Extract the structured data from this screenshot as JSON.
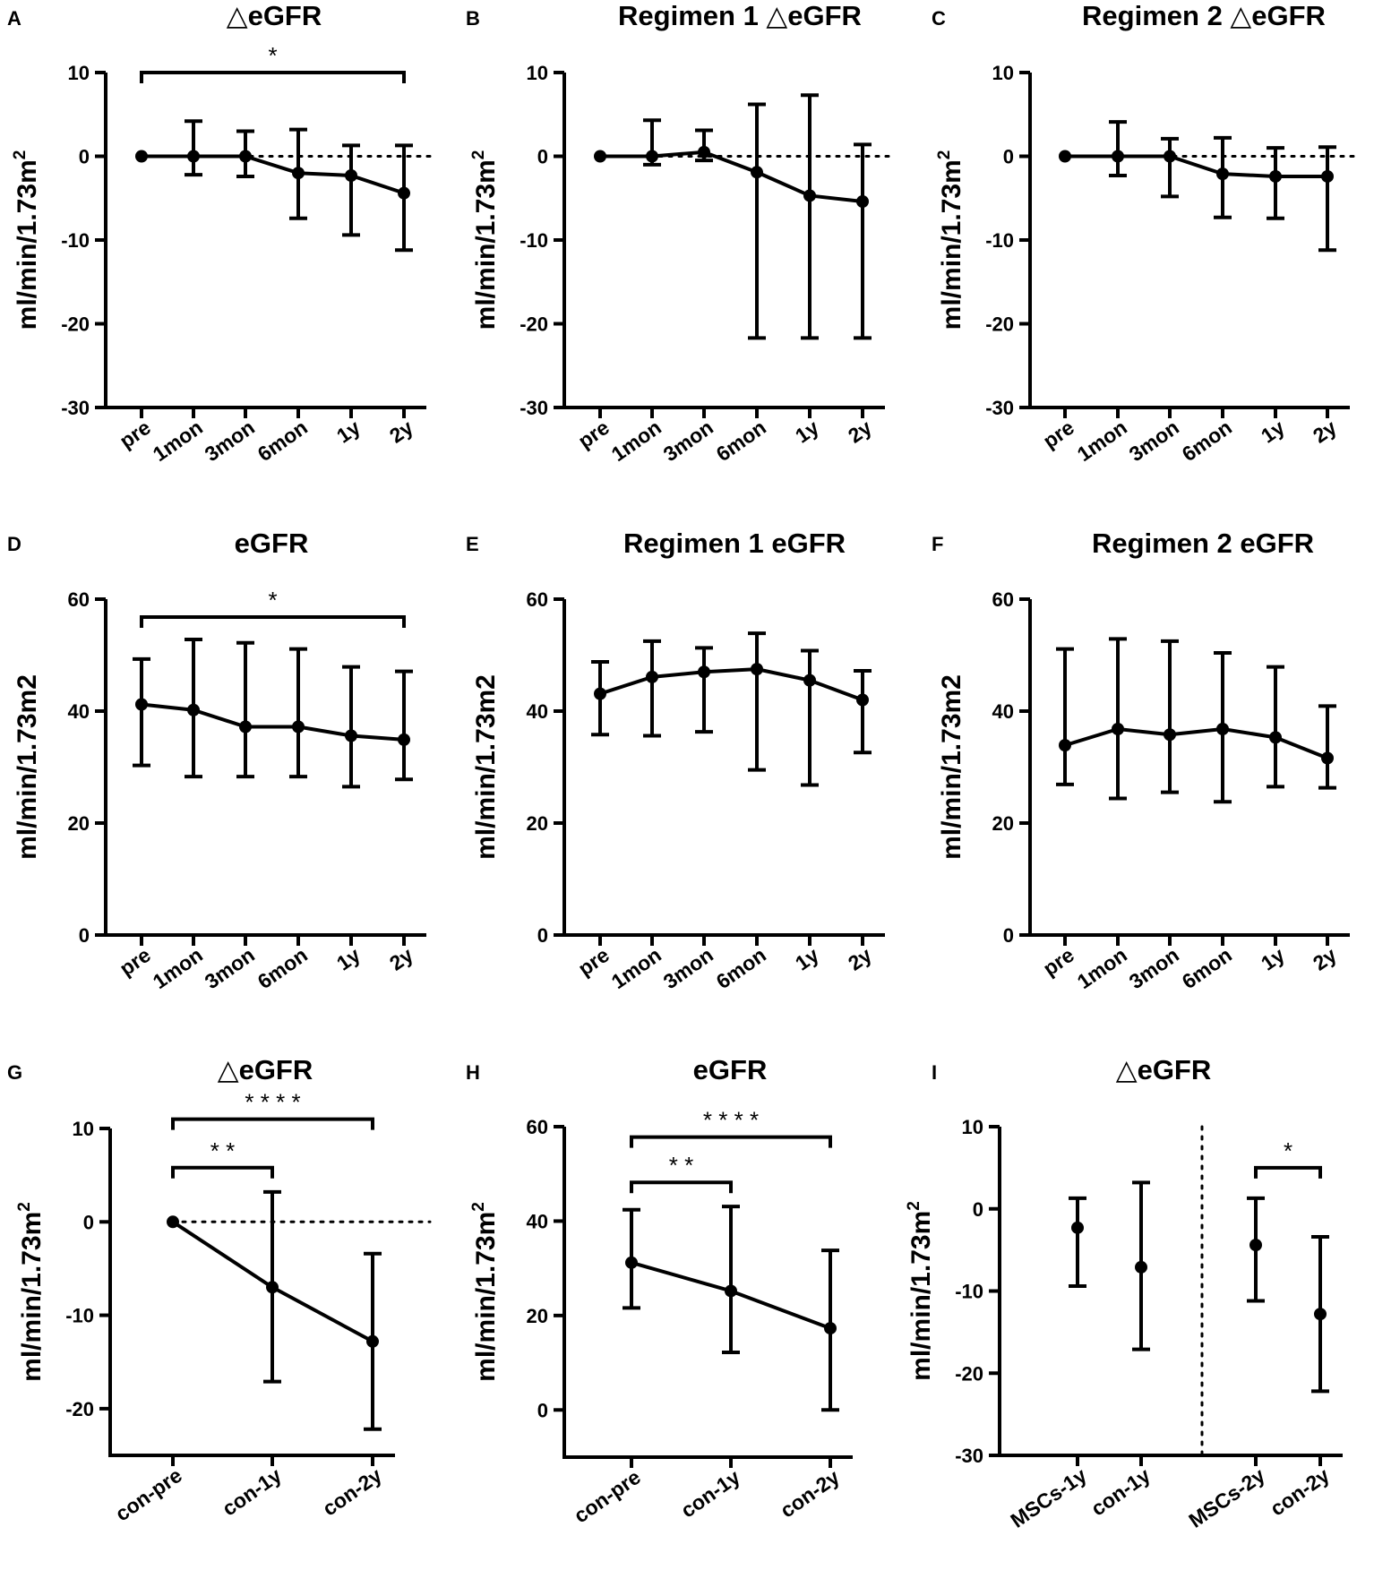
{
  "figure": {
    "background": "#ffffff",
    "ink": "#000000"
  },
  "chart_data": [
    {
      "id": "A",
      "panel_label": "A",
      "type": "line",
      "title": "△eGFR",
      "ylabel": "ml/min/1.73m",
      "ylabel_superscript": "2",
      "ylim": [
        -30,
        10
      ],
      "yticks": [
        10,
        0,
        -10,
        -20,
        -30
      ],
      "categories": [
        "pre",
        "1mon",
        "3mon",
        "6mon",
        "1y",
        "2y"
      ],
      "values": [
        0,
        0,
        0,
        -2,
        -2.3,
        -4.4
      ],
      "err_low": [
        0,
        -2.2,
        -2.4,
        -7.4,
        -9.4,
        -11.2
      ],
      "err_high": [
        0,
        4.2,
        3,
        3.2,
        1.3,
        1.3
      ],
      "zero_line": true,
      "comparisons": [
        {
          "from": 0,
          "to": 5,
          "at": 10,
          "label": "*"
        }
      ]
    },
    {
      "id": "B",
      "panel_label": "B",
      "type": "line",
      "title": "Regimen 1 △eGFR",
      "ylabel": "ml/min/1.73m",
      "ylabel_superscript": "2",
      "ylim": [
        -30,
        10
      ],
      "yticks": [
        10,
        0,
        -10,
        -20,
        -30
      ],
      "categories": [
        "pre",
        "1mon",
        "3mon",
        "6mon",
        "1y",
        "2y"
      ],
      "values": [
        0,
        0,
        0.5,
        -1.9,
        -4.7,
        -5.4
      ],
      "err_low": [
        0,
        -1,
        -0.5,
        -21.7,
        -21.7,
        -21.7
      ],
      "err_high": [
        0,
        4.3,
        3.1,
        6.2,
        7.3,
        1.4
      ],
      "zero_line": true,
      "comparisons": []
    },
    {
      "id": "C",
      "panel_label": "C",
      "type": "line",
      "title": "Regimen 2 △eGFR",
      "ylabel": "ml/min/1.73m",
      "ylabel_superscript": "2",
      "ylim": [
        -30,
        10
      ],
      "yticks": [
        10,
        0,
        -10,
        -20,
        -30
      ],
      "categories": [
        "pre",
        "1mon",
        "3mon",
        "6mon",
        "1y",
        "2y"
      ],
      "values": [
        0,
        0,
        0,
        -2.1,
        -2.4,
        -2.4
      ],
      "err_low": [
        0,
        -2.3,
        -4.8,
        -7.3,
        -7.4,
        -11.2
      ],
      "err_high": [
        0,
        4.1,
        2.1,
        2.2,
        1,
        1.1
      ],
      "zero_line": true,
      "comparisons": []
    },
    {
      "id": "D",
      "panel_label": "D",
      "type": "line",
      "title": "eGFR",
      "ylabel": "ml/min/1.73m2",
      "ylabel_superscript": "",
      "ylim": [
        0,
        60
      ],
      "yticks": [
        60,
        40,
        20,
        0
      ],
      "categories": [
        "pre",
        "1mon",
        "3mon",
        "6mon",
        "1y",
        "2y"
      ],
      "values": [
        41.2,
        40.2,
        37.2,
        37.2,
        35.6,
        34.9
      ],
      "err_low": [
        30.3,
        28.3,
        28.3,
        28.3,
        26.5,
        27.8
      ],
      "err_high": [
        49.3,
        52.8,
        52.2,
        51.1,
        47.9,
        47.1
      ],
      "zero_line": false,
      "comparisons": [
        {
          "from": 0,
          "to": 5,
          "at": 56.8,
          "label": "*"
        }
      ]
    },
    {
      "id": "E",
      "panel_label": "E",
      "type": "line",
      "title": "Regimen 1 eGFR",
      "ylabel": "ml/min/1.73m2",
      "ylabel_superscript": "",
      "ylim": [
        0,
        60
      ],
      "yticks": [
        60,
        40,
        20,
        0
      ],
      "categories": [
        "pre",
        "1mon",
        "3mon",
        "6mon",
        "1y",
        "2y"
      ],
      "values": [
        43.1,
        46.1,
        47,
        47.5,
        45.5,
        42
      ],
      "err_low": [
        35.8,
        35.6,
        36.3,
        29.5,
        26.8,
        32.6
      ],
      "err_high": [
        48.8,
        52.5,
        51.3,
        53.9,
        50.8,
        47.2
      ],
      "zero_line": false,
      "comparisons": []
    },
    {
      "id": "F",
      "panel_label": "F",
      "type": "line",
      "title": "Regimen 2 eGFR",
      "ylabel": "ml/min/1.73m2",
      "ylabel_superscript": "",
      "ylim": [
        0,
        60
      ],
      "yticks": [
        60,
        40,
        20,
        0
      ],
      "categories": [
        "pre",
        "1mon",
        "3mon",
        "6mon",
        "1y",
        "2y"
      ],
      "values": [
        33.9,
        36.8,
        35.8,
        36.8,
        35.3,
        31.6
      ],
      "err_low": [
        26.9,
        24.4,
        25.5,
        23.8,
        26.5,
        26.3
      ],
      "err_high": [
        51.1,
        52.9,
        52.5,
        50.4,
        47.9,
        40.9
      ],
      "zero_line": false,
      "comparisons": []
    },
    {
      "id": "G",
      "panel_label": "G",
      "type": "line",
      "title": "△eGFR",
      "ylabel": "ml/min/1.73m",
      "ylabel_superscript": "2",
      "ylim": [
        -25,
        10
      ],
      "yticks": [
        10,
        0,
        -10,
        -20
      ],
      "categories": [
        "con-pre",
        "con-1y",
        "con-2y"
      ],
      "values": [
        0,
        -7,
        -12.8
      ],
      "err_low": [
        0,
        -17.1,
        -22.2
      ],
      "err_high": [
        0,
        3.2,
        -3.4
      ],
      "zero_line": true,
      "comparisons": [
        {
          "from": 0,
          "to": 1,
          "at": 5.8,
          "label": "* *"
        },
        {
          "from": 0,
          "to": 2,
          "at": 11,
          "label": "* * * *"
        }
      ]
    },
    {
      "id": "H",
      "panel_label": "H",
      "type": "line",
      "title": "eGFR",
      "ylabel": "ml/min/1.73m",
      "ylabel_superscript": "2",
      "ylim": [
        -10,
        60
      ],
      "yticks": [
        60,
        40,
        20,
        0
      ],
      "categories": [
        "con-pre",
        "con-1y",
        "con-2y"
      ],
      "values": [
        31.2,
        25.2,
        17.3
      ],
      "err_low": [
        21.6,
        12.2,
        0
      ],
      "err_high": [
        42.4,
        43.1,
        33.8
      ],
      "zero_line": false,
      "comparisons": [
        {
          "from": 0,
          "to": 1,
          "at": 48.2,
          "label": "* *"
        },
        {
          "from": 0,
          "to": 2,
          "at": 57.8,
          "label": "* * * *"
        }
      ]
    },
    {
      "id": "I",
      "panel_label": "I",
      "type": "scatter",
      "title": "△eGFR",
      "ylabel": "ml/min/1.73m",
      "ylabel_superscript": "2",
      "ylim": [
        -30,
        10
      ],
      "yticks": [
        10,
        0,
        -10,
        -20,
        -30
      ],
      "categories": [
        "MSCs-1y",
        "con-1y",
        "MSCs-2y",
        "con-2y"
      ],
      "values": [
        -2.3,
        -7.1,
        -4.4,
        -12.8
      ],
      "err_low": [
        -9.4,
        -17.1,
        -11.2,
        -22.2
      ],
      "err_high": [
        1.3,
        3.2,
        1.3,
        -3.4
      ],
      "zero_line": false,
      "group_separator": true,
      "comparisons": [
        {
          "from": 2,
          "to": 3,
          "at": 5,
          "label": "*"
        }
      ]
    }
  ]
}
